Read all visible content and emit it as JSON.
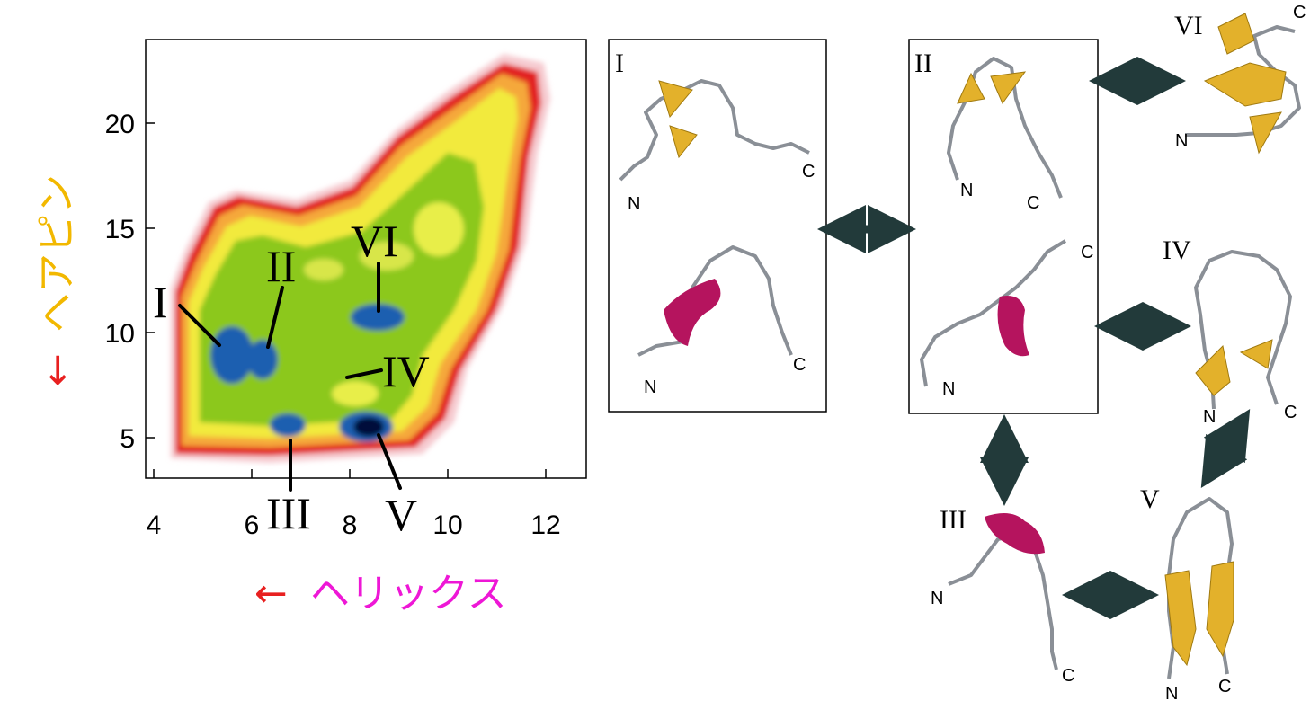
{
  "chart_data": {
    "type": "heatmap",
    "x_ticks": [
      "4",
      "6",
      "8",
      "10",
      "12"
    ],
    "y_ticks": [
      "5",
      "10",
      "15",
      "20"
    ],
    "xlim": [
      4,
      13
    ],
    "ylim": [
      3,
      23
    ],
    "xlabel_arrow": "←",
    "xlabel": "ヘリックス",
    "ylabel_arrow": "←",
    "ylabel": "ヘアピン",
    "regions": [
      {
        "label": "I",
        "x": 5.3,
        "y": 9.0,
        "level": "low"
      },
      {
        "label": "II",
        "x": 6.3,
        "y": 9.0,
        "level": "low"
      },
      {
        "label": "III",
        "x": 6.8,
        "y": 5.6,
        "level": "low"
      },
      {
        "label": "IV",
        "x": 8.0,
        "y": 8.0,
        "level": "mid"
      },
      {
        "label": "V",
        "x": 8.8,
        "y": 5.6,
        "level": "lowest"
      },
      {
        "label": "VI",
        "x": 8.7,
        "y": 10.8,
        "level": "low"
      }
    ],
    "colors": {
      "lowest": "#06083a",
      "low": "#1f5fb0",
      "mid": "#8cc81e",
      "high": "#f2ea3c",
      "higher": "#f5a83a",
      "highest": "#e22020",
      "edge": "#f6cbd0"
    }
  },
  "structures": {
    "panels": [
      "I",
      "II",
      "III",
      "IV",
      "V",
      "VI"
    ],
    "terminus_n": "N",
    "terminus_c": "C"
  },
  "colors": {
    "sheet": "#e3b12b",
    "helix": "#b5145e",
    "arrow": "#223a3a",
    "xlabel": "#ee17d6",
    "ylabel": "#f2b800",
    "axis_arrow": "#e82020"
  }
}
